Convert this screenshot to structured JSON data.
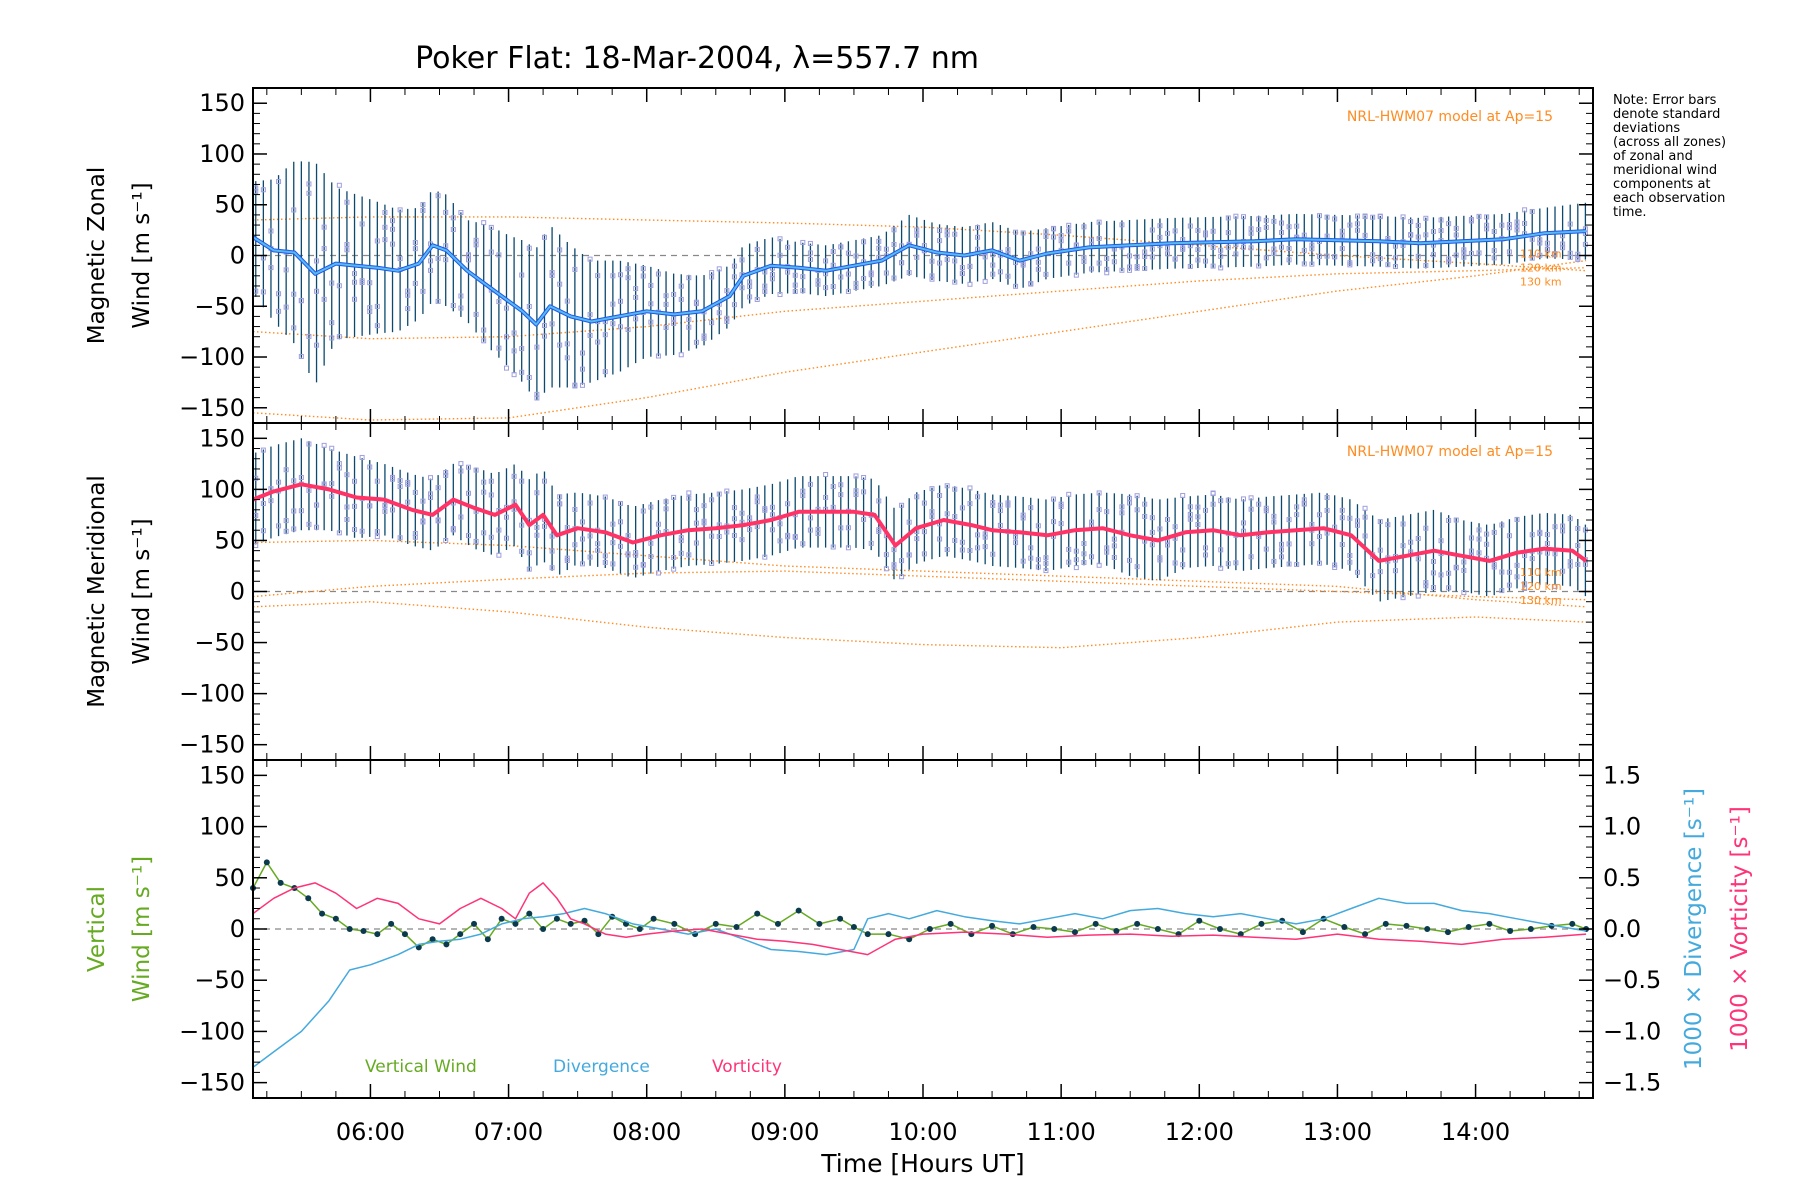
{
  "title": "Poker Flat: 18-Mar-2004, λ=557.7 nm",
  "note_lines": [
    "Note: Error bars",
    "denote standard",
    "deviations",
    "(across all zones)",
    "of zonal and",
    "meridional wind",
    "components at",
    "each observation",
    "time."
  ],
  "colors": {
    "zonal_mean": "#2255ee",
    "zonal_mean_light": "#55bbee",
    "meridional_mean": "#ff3366",
    "error_bar": "#0b4a6e",
    "model": "#ff8c22",
    "zone_scatter": "#9f9fdf",
    "vertical": "#66aa22",
    "divergence": "#44aadd",
    "vorticity": "#ff3377",
    "marker": "#0b3a4e",
    "zero_line": "#888888"
  },
  "chart_data": [
    {
      "type": "line",
      "panel": "zonal",
      "ylabel_line1": "Magnetic Zonal",
      "ylabel_line2": "Wind [m s⁻¹]",
      "ylim": [
        -165,
        165
      ],
      "yticks": [
        "150",
        "100",
        "50",
        "0",
        "−50",
        "−100",
        "−150"
      ],
      "ytick_values": [
        150,
        100,
        50,
        0,
        -50,
        -100,
        -150
      ],
      "model_label": "NRL-HWM07 model at Ap=15",
      "model_altitude_labels": [
        "110 km",
        "120 km",
        "130 km"
      ],
      "mean_series": {
        "t": [
          5.15,
          5.3,
          5.45,
          5.6,
          5.75,
          5.9,
          6.05,
          6.2,
          6.35,
          6.45,
          6.55,
          6.7,
          6.85,
          7.0,
          7.1,
          7.2,
          7.3,
          7.45,
          7.6,
          7.8,
          8.0,
          8.2,
          8.4,
          8.6,
          8.7,
          8.9,
          9.1,
          9.3,
          9.5,
          9.7,
          9.9,
          10.1,
          10.3,
          10.5,
          10.7,
          10.9,
          11.2,
          11.5,
          11.8,
          12.1,
          12.4,
          12.7,
          13.0,
          13.3,
          13.6,
          13.9,
          14.2,
          14.5,
          14.8
        ],
        "v": [
          18,
          5,
          3,
          -18,
          -8,
          -10,
          -12,
          -15,
          -8,
          10,
          5,
          -15,
          -30,
          -45,
          -55,
          -68,
          -50,
          -60,
          -65,
          -60,
          -55,
          -58,
          -55,
          -40,
          -20,
          -10,
          -12,
          -15,
          -10,
          -5,
          10,
          3,
          0,
          5,
          -5,
          2,
          8,
          10,
          12,
          13,
          14,
          16,
          15,
          14,
          12,
          14,
          16,
          22,
          24
        ]
      },
      "std": [
        55,
        70,
        90,
        110,
        75,
        70,
        65,
        60,
        55,
        55,
        55,
        50,
        60,
        65,
        70,
        75,
        80,
        70,
        60,
        55,
        45,
        40,
        35,
        30,
        30,
        28,
        25,
        25,
        25,
        25,
        30,
        28,
        28,
        28,
        28,
        25,
        25,
        25,
        25,
        25,
        25,
        25,
        25,
        25,
        25,
        25,
        25,
        25,
        28
      ],
      "models": [
        {
          "altitude": "110 km",
          "t": [
            5.15,
            6.0,
            7.0,
            8.0,
            9.0,
            10.0,
            11.0,
            12.0,
            13.0,
            14.0,
            14.8
          ],
          "v": [
            35,
            38,
            38,
            35,
            32,
            28,
            20,
            10,
            0,
            -8,
            -15
          ]
        },
        {
          "altitude": "120 km",
          "t": [
            5.15,
            6.0,
            7.0,
            8.0,
            9.0,
            10.0,
            11.0,
            12.0,
            13.0,
            14.0,
            14.8
          ],
          "v": [
            -75,
            -82,
            -80,
            -70,
            -55,
            -45,
            -35,
            -25,
            -18,
            -15,
            -12
          ]
        },
        {
          "altitude": "130 km",
          "t": [
            5.15,
            6.0,
            7.0,
            8.0,
            9.0,
            10.0,
            11.0,
            12.0,
            13.0,
            14.0,
            14.8
          ],
          "v": [
            -155,
            -162,
            -160,
            -140,
            -115,
            -95,
            -75,
            -55,
            -35,
            -20,
            -5
          ]
        }
      ]
    },
    {
      "type": "line",
      "panel": "meridional",
      "ylabel_line1": "Magnetic Meridional",
      "ylabel_line2": "Wind [m s⁻¹]",
      "ylim": [
        -165,
        165
      ],
      "yticks": [
        "150",
        "100",
        "50",
        "0",
        "−50",
        "−100",
        "−150"
      ],
      "ytick_values": [
        150,
        100,
        50,
        0,
        -50,
        -100,
        -150
      ],
      "model_label": "NRL-HWM07 model at Ap=15",
      "model_altitude_labels": [
        "110 km",
        "120 km",
        "130 km"
      ],
      "mean_series": {
        "t": [
          5.15,
          5.3,
          5.5,
          5.7,
          5.9,
          6.1,
          6.3,
          6.45,
          6.6,
          6.75,
          6.9,
          7.05,
          7.15,
          7.25,
          7.35,
          7.5,
          7.7,
          7.9,
          8.1,
          8.3,
          8.5,
          8.7,
          8.9,
          9.1,
          9.3,
          9.5,
          9.65,
          9.8,
          9.95,
          10.15,
          10.35,
          10.5,
          10.7,
          10.9,
          11.1,
          11.3,
          11.5,
          11.7,
          11.9,
          12.1,
          12.3,
          12.5,
          12.7,
          12.9,
          13.1,
          13.3,
          13.5,
          13.7,
          13.9,
          14.1,
          14.3,
          14.5,
          14.7,
          14.8
        ],
        "v": [
          90,
          98,
          105,
          100,
          92,
          90,
          80,
          75,
          90,
          82,
          75,
          85,
          65,
          75,
          55,
          62,
          58,
          48,
          55,
          60,
          62,
          65,
          70,
          78,
          78,
          78,
          75,
          45,
          62,
          70,
          65,
          60,
          58,
          55,
          60,
          62,
          55,
          50,
          58,
          60,
          55,
          58,
          60,
          62,
          55,
          30,
          35,
          40,
          35,
          30,
          38,
          42,
          40,
          30
        ]
      },
      "std": [
        45,
        45,
        45,
        40,
        40,
        35,
        35,
        35,
        35,
        40,
        40,
        40,
        45,
        45,
        40,
        35,
        35,
        35,
        35,
        35,
        35,
        35,
        35,
        35,
        35,
        35,
        35,
        35,
        35,
        35,
        35,
        35,
        35,
        35,
        35,
        35,
        40,
        40,
        35,
        35,
        35,
        35,
        35,
        35,
        35,
        40,
        40,
        40,
        35,
        35,
        35,
        35,
        35,
        35
      ],
      "models": [
        {
          "altitude": "110 km",
          "t": [
            5.15,
            6.0,
            7.0,
            8.0,
            9.0,
            10.0,
            11.0,
            12.0,
            13.0,
            14.0,
            14.8
          ],
          "v": [
            48,
            50,
            45,
            35,
            25,
            20,
            15,
            10,
            5,
            -8,
            -15
          ]
        },
        {
          "altitude": "120 km",
          "t": [
            5.15,
            6.0,
            7.0,
            8.0,
            9.0,
            10.0,
            11.0,
            12.0,
            13.0,
            14.0,
            14.8
          ],
          "v": [
            -5,
            5,
            12,
            18,
            20,
            15,
            10,
            5,
            0,
            -5,
            -8
          ]
        },
        {
          "altitude": "130 km",
          "t": [
            5.15,
            6.0,
            7.0,
            8.0,
            9.0,
            10.0,
            11.0,
            12.0,
            13.0,
            14.0,
            14.8
          ],
          "v": [
            -15,
            -10,
            -20,
            -35,
            -45,
            -52,
            -55,
            -45,
            -30,
            -25,
            -30
          ]
        }
      ]
    },
    {
      "type": "line",
      "panel": "vertical",
      "ylabel_line1": "Vertical",
      "ylabel_line2": "Wind [m s⁻¹]",
      "right_label_divergence": "1000 × Divergence [s⁻¹]",
      "right_label_vorticity": "1000 × Vorticity [s⁻¹]",
      "ylim": [
        -165,
        165
      ],
      "yticks": [
        "150",
        "100",
        "50",
        "0",
        "−50",
        "−100",
        "−150"
      ],
      "ytick_values": [
        150,
        100,
        50,
        0,
        -50,
        -100,
        -150
      ],
      "right_ylim": [
        -1.65,
        1.65
      ],
      "right_yticks": [
        "1.5",
        "1.0",
        "0.5",
        "0.0",
        "−0.5",
        "−1.0",
        "−1.5"
      ],
      "right_ytick_values": [
        1.5,
        1.0,
        0.5,
        0.0,
        -0.5,
        -1.0,
        -1.5
      ],
      "legend": [
        "Vertical Wind",
        "Divergence",
        "Vorticity"
      ],
      "series": [
        {
          "name": "Vertical Wind",
          "axis": "left",
          "t": [
            5.15,
            5.25,
            5.35,
            5.45,
            5.55,
            5.65,
            5.75,
            5.85,
            5.95,
            6.05,
            6.15,
            6.25,
            6.35,
            6.45,
            6.55,
            6.65,
            6.75,
            6.85,
            6.95,
            7.05,
            7.15,
            7.25,
            7.35,
            7.45,
            7.55,
            7.65,
            7.75,
            7.85,
            7.95,
            8.05,
            8.2,
            8.35,
            8.5,
            8.65,
            8.8,
            8.95,
            9.1,
            9.25,
            9.4,
            9.5,
            9.6,
            9.75,
            9.9,
            10.05,
            10.2,
            10.35,
            10.5,
            10.65,
            10.8,
            10.95,
            11.1,
            11.25,
            11.4,
            11.55,
            11.7,
            11.85,
            12.0,
            12.15,
            12.3,
            12.45,
            12.6,
            12.75,
            12.9,
            13.05,
            13.2,
            13.35,
            13.5,
            13.65,
            13.8,
            13.95,
            14.1,
            14.25,
            14.4,
            14.55,
            14.7,
            14.8
          ],
          "v": [
            40,
            65,
            45,
            40,
            30,
            15,
            10,
            0,
            -2,
            -5,
            5,
            -5,
            -18,
            -10,
            -15,
            -5,
            5,
            -10,
            10,
            5,
            15,
            0,
            10,
            5,
            8,
            -5,
            12,
            5,
            0,
            10,
            5,
            -5,
            5,
            2,
            15,
            5,
            18,
            5,
            10,
            2,
            -5,
            -5,
            -10,
            0,
            5,
            -5,
            3,
            -5,
            2,
            0,
            -3,
            5,
            -2,
            5,
            0,
            -5,
            8,
            0,
            -5,
            5,
            8,
            -3,
            10,
            2,
            -5,
            5,
            3,
            0,
            -3,
            2,
            5,
            -2,
            0,
            3,
            5,
            0
          ]
        },
        {
          "name": "Divergence",
          "axis": "right",
          "t": [
            5.15,
            5.3,
            5.5,
            5.7,
            5.85,
            6.0,
            6.2,
            6.35,
            6.5,
            6.65,
            6.8,
            6.95,
            7.1,
            7.25,
            7.4,
            7.55,
            7.7,
            7.9,
            8.1,
            8.3,
            8.5,
            8.7,
            8.9,
            9.1,
            9.3,
            9.5,
            9.6,
            9.75,
            9.9,
            10.1,
            10.3,
            10.5,
            10.7,
            10.9,
            11.1,
            11.3,
            11.5,
            11.7,
            11.9,
            12.1,
            12.3,
            12.5,
            12.7,
            12.9,
            13.1,
            13.3,
            13.5,
            13.7,
            13.9,
            14.1,
            14.3,
            14.5,
            14.8
          ],
          "v": [
            -1.35,
            -1.2,
            -1.0,
            -0.7,
            -0.4,
            -0.35,
            -0.25,
            -0.15,
            -0.12,
            -0.1,
            -0.05,
            0.05,
            0.1,
            0.12,
            0.15,
            0.2,
            0.15,
            0.05,
            0.0,
            -0.05,
            0.0,
            -0.1,
            -0.2,
            -0.22,
            -0.25,
            -0.2,
            0.1,
            0.15,
            0.1,
            0.18,
            0.12,
            0.08,
            0.05,
            0.1,
            0.15,
            0.1,
            0.18,
            0.2,
            0.15,
            0.12,
            0.15,
            0.1,
            0.05,
            0.1,
            0.2,
            0.3,
            0.25,
            0.25,
            0.18,
            0.15,
            0.1,
            0.05,
            -0.02
          ]
        },
        {
          "name": "Vorticity",
          "axis": "right",
          "t": [
            5.15,
            5.3,
            5.45,
            5.6,
            5.75,
            5.9,
            6.05,
            6.2,
            6.35,
            6.5,
            6.65,
            6.8,
            6.95,
            7.05,
            7.15,
            7.25,
            7.35,
            7.45,
            7.55,
            7.7,
            7.85,
            8.0,
            8.2,
            8.4,
            8.6,
            8.8,
            9.0,
            9.2,
            9.4,
            9.6,
            9.8,
            10.0,
            10.3,
            10.6,
            10.9,
            11.2,
            11.5,
            11.8,
            12.1,
            12.4,
            12.7,
            13.0,
            13.3,
            13.6,
            13.9,
            14.2,
            14.5,
            14.8
          ],
          "v": [
            0.15,
            0.3,
            0.4,
            0.45,
            0.35,
            0.2,
            0.3,
            0.25,
            0.1,
            0.05,
            0.2,
            0.3,
            0.2,
            0.1,
            0.35,
            0.45,
            0.3,
            0.1,
            0.05,
            -0.05,
            -0.08,
            -0.05,
            -0.02,
            0.0,
            -0.05,
            -0.1,
            -0.12,
            -0.15,
            -0.2,
            -0.25,
            -0.1,
            -0.05,
            -0.03,
            -0.05,
            -0.08,
            -0.06,
            -0.05,
            -0.07,
            -0.06,
            -0.08,
            -0.1,
            -0.05,
            -0.1,
            -0.12,
            -0.15,
            -0.1,
            -0.08,
            -0.05
          ]
        }
      ]
    }
  ],
  "xaxis": {
    "label": "Time [Hours UT]",
    "xlim": [
      5.15,
      14.85
    ],
    "ticks": [
      6,
      7,
      8,
      9,
      10,
      11,
      12,
      13,
      14
    ],
    "tick_labels": [
      "06:00",
      "07:00",
      "08:00",
      "09:00",
      "10:00",
      "11:00",
      "12:00",
      "13:00",
      "14:00"
    ]
  }
}
